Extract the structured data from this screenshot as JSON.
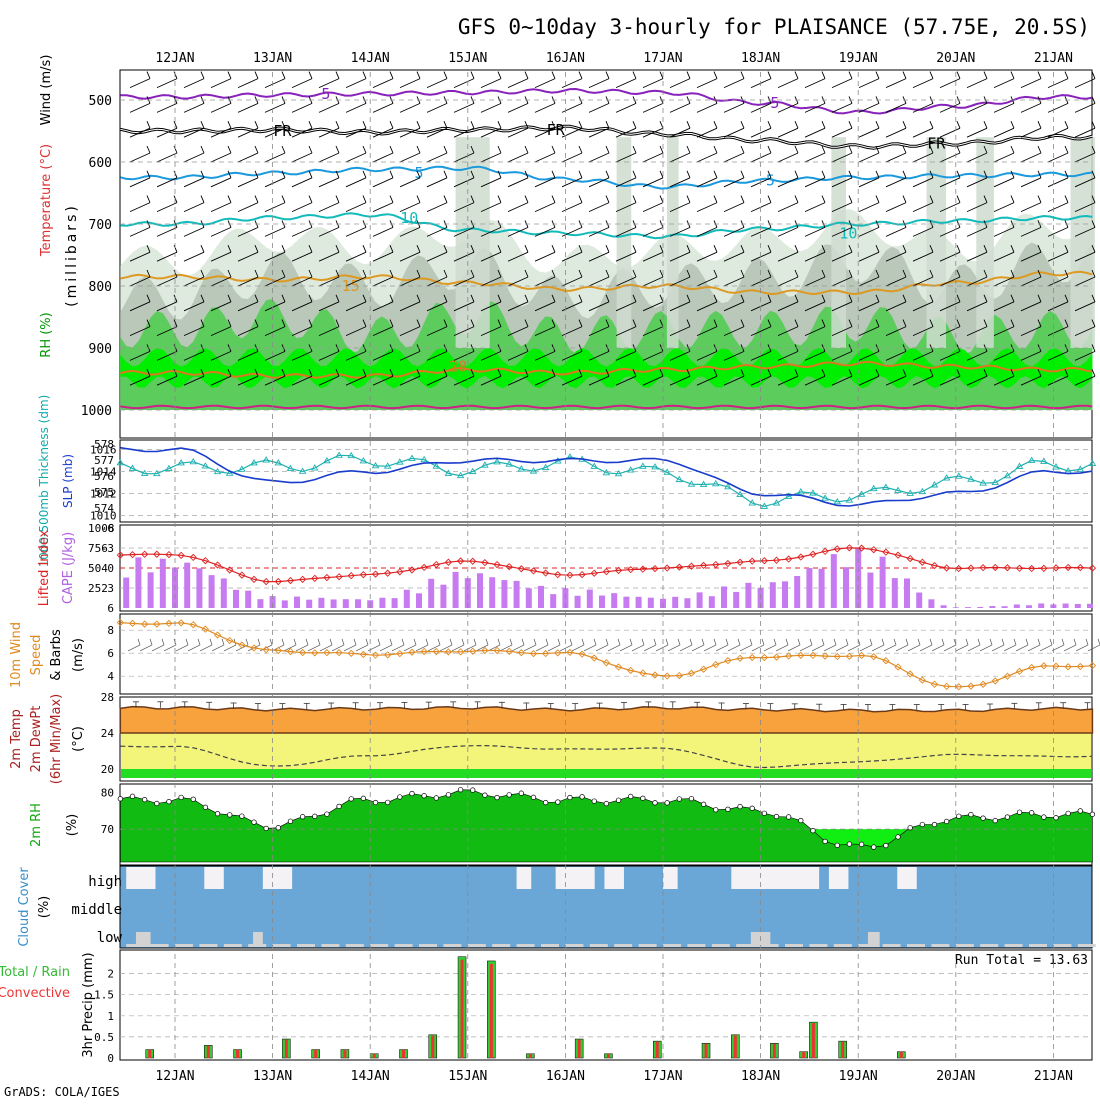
{
  "title": "GFS 0~10day 3-hourly for PLAISANCE (57.75E, 20.5S)",
  "footer": "GrADS: COLA/IGES",
  "date_labels": [
    "12JAN",
    "13JAN",
    "14JAN",
    "15JAN",
    "16JAN",
    "17JAN",
    "18JAN",
    "19JAN",
    "20JAN",
    "21JAN"
  ],
  "colors": {
    "rh_green": "#5ccc5c",
    "rh_bright": "#00ee00",
    "rh_gray": "#b9c8b9",
    "temp_purple": "#8822bb",
    "temp_blue": "#1a99dd",
    "temp_teal": "#11bbbb",
    "temp_orange": "#dd9922",
    "slp_blue": "#1a3ccc",
    "thick_cyan": "#20b0b0",
    "cape_purple": "#c77bf0",
    "li_red": "#dd2222",
    "wind_orange": "#e08a22",
    "temp_fill": "#f7a23c",
    "dew_fill": "#f3f57a",
    "rh2_green": "#11bb11",
    "cloud_blue": "#6aa7d6",
    "precip_green": "#33cc33",
    "precip_red": "#ee3333"
  },
  "panels": {
    "upper": {
      "ylabel_parts": [
        "RH (%)",
        "Temperature (°C)",
        "Wind (m/s)"
      ],
      "yaxis_title": "(millibars)",
      "pressure_ticks": [
        "500",
        "600",
        "700",
        "800",
        "900",
        "1000"
      ],
      "contour_labels": [
        "-5",
        "FR",
        "5",
        "10",
        "15",
        "20",
        "-5",
        "FR",
        "5",
        "10",
        "FR"
      ]
    },
    "slp": {
      "ylabel_left": "1000-500mb Thickness (dm)",
      "ylabel_right": "SLP (mb)",
      "left_ticks": [
        "578",
        "577",
        "576",
        "575",
        "574"
      ],
      "right_ticks": [
        "1016",
        "1014",
        "1012",
        "1010"
      ]
    },
    "cape": {
      "ylabel_left": "Lifted Index",
      "ylabel_right": "CAPE (J/kg)",
      "left_ticks": [
        "-6",
        "-3",
        "0",
        "3",
        "6"
      ],
      "right_ticks": [
        "1008",
        "756",
        "504",
        "252"
      ]
    },
    "wind10": {
      "ylabel_parts": [
        "10m Wind",
        "Speed",
        "& Barbs",
        "(m/s)"
      ],
      "ticks": [
        "8",
        "6",
        "4"
      ]
    },
    "temp2m": {
      "ylabel_parts": [
        "2m Temp",
        "2m DewPt",
        "(6hr Min/Max)",
        "(°C)"
      ],
      "ticks": [
        "28",
        "24",
        "20"
      ]
    },
    "rh2m": {
      "ylabel": "2m RH",
      "unit": "(%)",
      "ticks": [
        "80",
        "70"
      ]
    },
    "cloud": {
      "ylabel": "Cloud Cover",
      "unit": "(%)",
      "levels": [
        "high",
        "middle",
        "low"
      ]
    },
    "precip": {
      "ylabel_parts": [
        "Total / Rain",
        "Convective"
      ],
      "yaxis_title": "3hr Precip (mm)",
      "ticks": [
        "2",
        "1.5",
        "1",
        "0.5",
        "0"
      ],
      "run_total": "Run Total = 13.63"
    }
  },
  "chart_data": [
    {
      "type": "line",
      "name": "upper-air cross section",
      "x": [
        "12JAN",
        "13JAN",
        "14JAN",
        "15JAN",
        "16JAN",
        "17JAN",
        "18JAN",
        "19JAN",
        "20JAN",
        "21JAN"
      ],
      "ylim": [
        1000,
        450
      ],
      "series": [
        {
          "name": "-5",
          "values": [
            495,
            492,
            490,
            488,
            485,
            488,
            505,
            520,
            510,
            495
          ]
        },
        {
          "name": "FR",
          "values": [
            550,
            548,
            552,
            548,
            545,
            555,
            565,
            575,
            570,
            560
          ]
        },
        {
          "name": "5",
          "values": [
            625,
            618,
            612,
            610,
            628,
            640,
            630,
            625,
            622,
            620
          ]
        },
        {
          "name": "10",
          "values": [
            700,
            690,
            685,
            710,
            715,
            720,
            708,
            700,
            695,
            690
          ]
        },
        {
          "name": "15",
          "values": [
            785,
            790,
            785,
            795,
            805,
            800,
            810,
            810,
            795,
            780
          ]
        },
        {
          "name": "20",
          "values": [
            940,
            945,
            945,
            935,
            940,
            935,
            930,
            925,
            930,
            935
          ]
        }
      ]
    },
    {
      "type": "line",
      "name": "slp-thickness",
      "x": [
        "12JAN",
        "13JAN",
        "14JAN",
        "15JAN",
        "16JAN",
        "17JAN",
        "18JAN",
        "19JAN",
        "20JAN",
        "21JAN"
      ],
      "series": [
        {
          "name": "SLP (mb)",
          "values": [
            1016,
            1013,
            1014,
            1015,
            1015,
            1015,
            1012,
            1011,
            1012,
            1014
          ]
        },
        {
          "name": "1000-500mb Thickness (dm)",
          "values": [
            576.5,
            576.6,
            577.0,
            576.4,
            576.8,
            576.2,
            574.5,
            574.8,
            575.6,
            576.7
          ]
        }
      ]
    },
    {
      "type": "bar",
      "name": "cape-li",
      "categories": [
        "12JAN",
        "13JAN",
        "14JAN",
        "15JAN",
        "16JAN",
        "17JAN",
        "18JAN",
        "19JAN",
        "20JAN",
        "21JAN"
      ],
      "series": [
        {
          "name": "CAPE (J/kg)",
          "values": [
            640,
            150,
            120,
            480,
            250,
            140,
            330,
            760,
            10,
            60
          ]
        },
        {
          "name": "Lifted Index",
          "values": [
            -2,
            2,
            1,
            -1,
            1,
            0,
            -1,
            -3,
            0,
            0
          ]
        }
      ]
    },
    {
      "type": "line",
      "name": "10m wind",
      "x": [
        "12JAN",
        "13JAN",
        "14JAN",
        "15JAN",
        "16JAN",
        "17JAN",
        "18JAN",
        "19JAN",
        "20JAN",
        "21JAN"
      ],
      "series": [
        {
          "name": "Speed",
          "values": [
            8.6,
            6.2,
            5.9,
            6.2,
            6.0,
            4.0,
            5.7,
            5.8,
            3.0,
            4.9
          ]
        }
      ]
    },
    {
      "type": "area",
      "name": "2m temp dewpoint",
      "x": [
        "12JAN",
        "13JAN",
        "14JAN",
        "15JAN",
        "16JAN",
        "17JAN",
        "18JAN",
        "19JAN",
        "20JAN",
        "21JAN"
      ],
      "ylim": [
        19,
        28
      ],
      "series": [
        {
          "name": "2m Temp",
          "values": [
            26.8,
            26.6,
            26.7,
            26.8,
            26.6,
            26.8,
            26.6,
            26.5,
            26.5,
            26.7
          ]
        },
        {
          "name": "2m DewPt",
          "values": [
            22.5,
            20.3,
            21.5,
            22.6,
            22.2,
            22.3,
            20.2,
            20.8,
            21.6,
            21.4
          ]
        }
      ]
    },
    {
      "type": "area",
      "name": "2m RH",
      "x": [
        "12JAN",
        "13JAN",
        "14JAN",
        "15JAN",
        "16JAN",
        "17JAN",
        "18JAN",
        "19JAN",
        "20JAN",
        "21JAN"
      ],
      "ylim": [
        61,
        83
      ],
      "series": [
        {
          "name": "2m RH",
          "values": [
            78,
            71,
            78,
            80,
            78,
            78,
            75,
            65,
            73,
            74
          ]
        }
      ]
    },
    {
      "type": "bar",
      "name": "3hr precip",
      "x": [
        0.2,
        0.8,
        1.1,
        1.6,
        1.9,
        2.2,
        2.5,
        2.8,
        3.1,
        3.4,
        3.7,
        4.1,
        4.6,
        4.9,
        5.4,
        5.9,
        6.2,
        6.6,
        6.9,
        7.0,
        7.3,
        7.9
      ],
      "ylim": [
        0,
        2.45
      ],
      "series": [
        {
          "name": "Total / Rain",
          "values": [
            0.2,
            0.3,
            0.2,
            0.45,
            0.2,
            0.2,
            0.1,
            0.2,
            0.55,
            2.4,
            2.3,
            0.1,
            0.45,
            0.1,
            0.4,
            0.35,
            0.55,
            0.35,
            0.15,
            0.85,
            0.4,
            0.15
          ]
        }
      ]
    }
  ]
}
